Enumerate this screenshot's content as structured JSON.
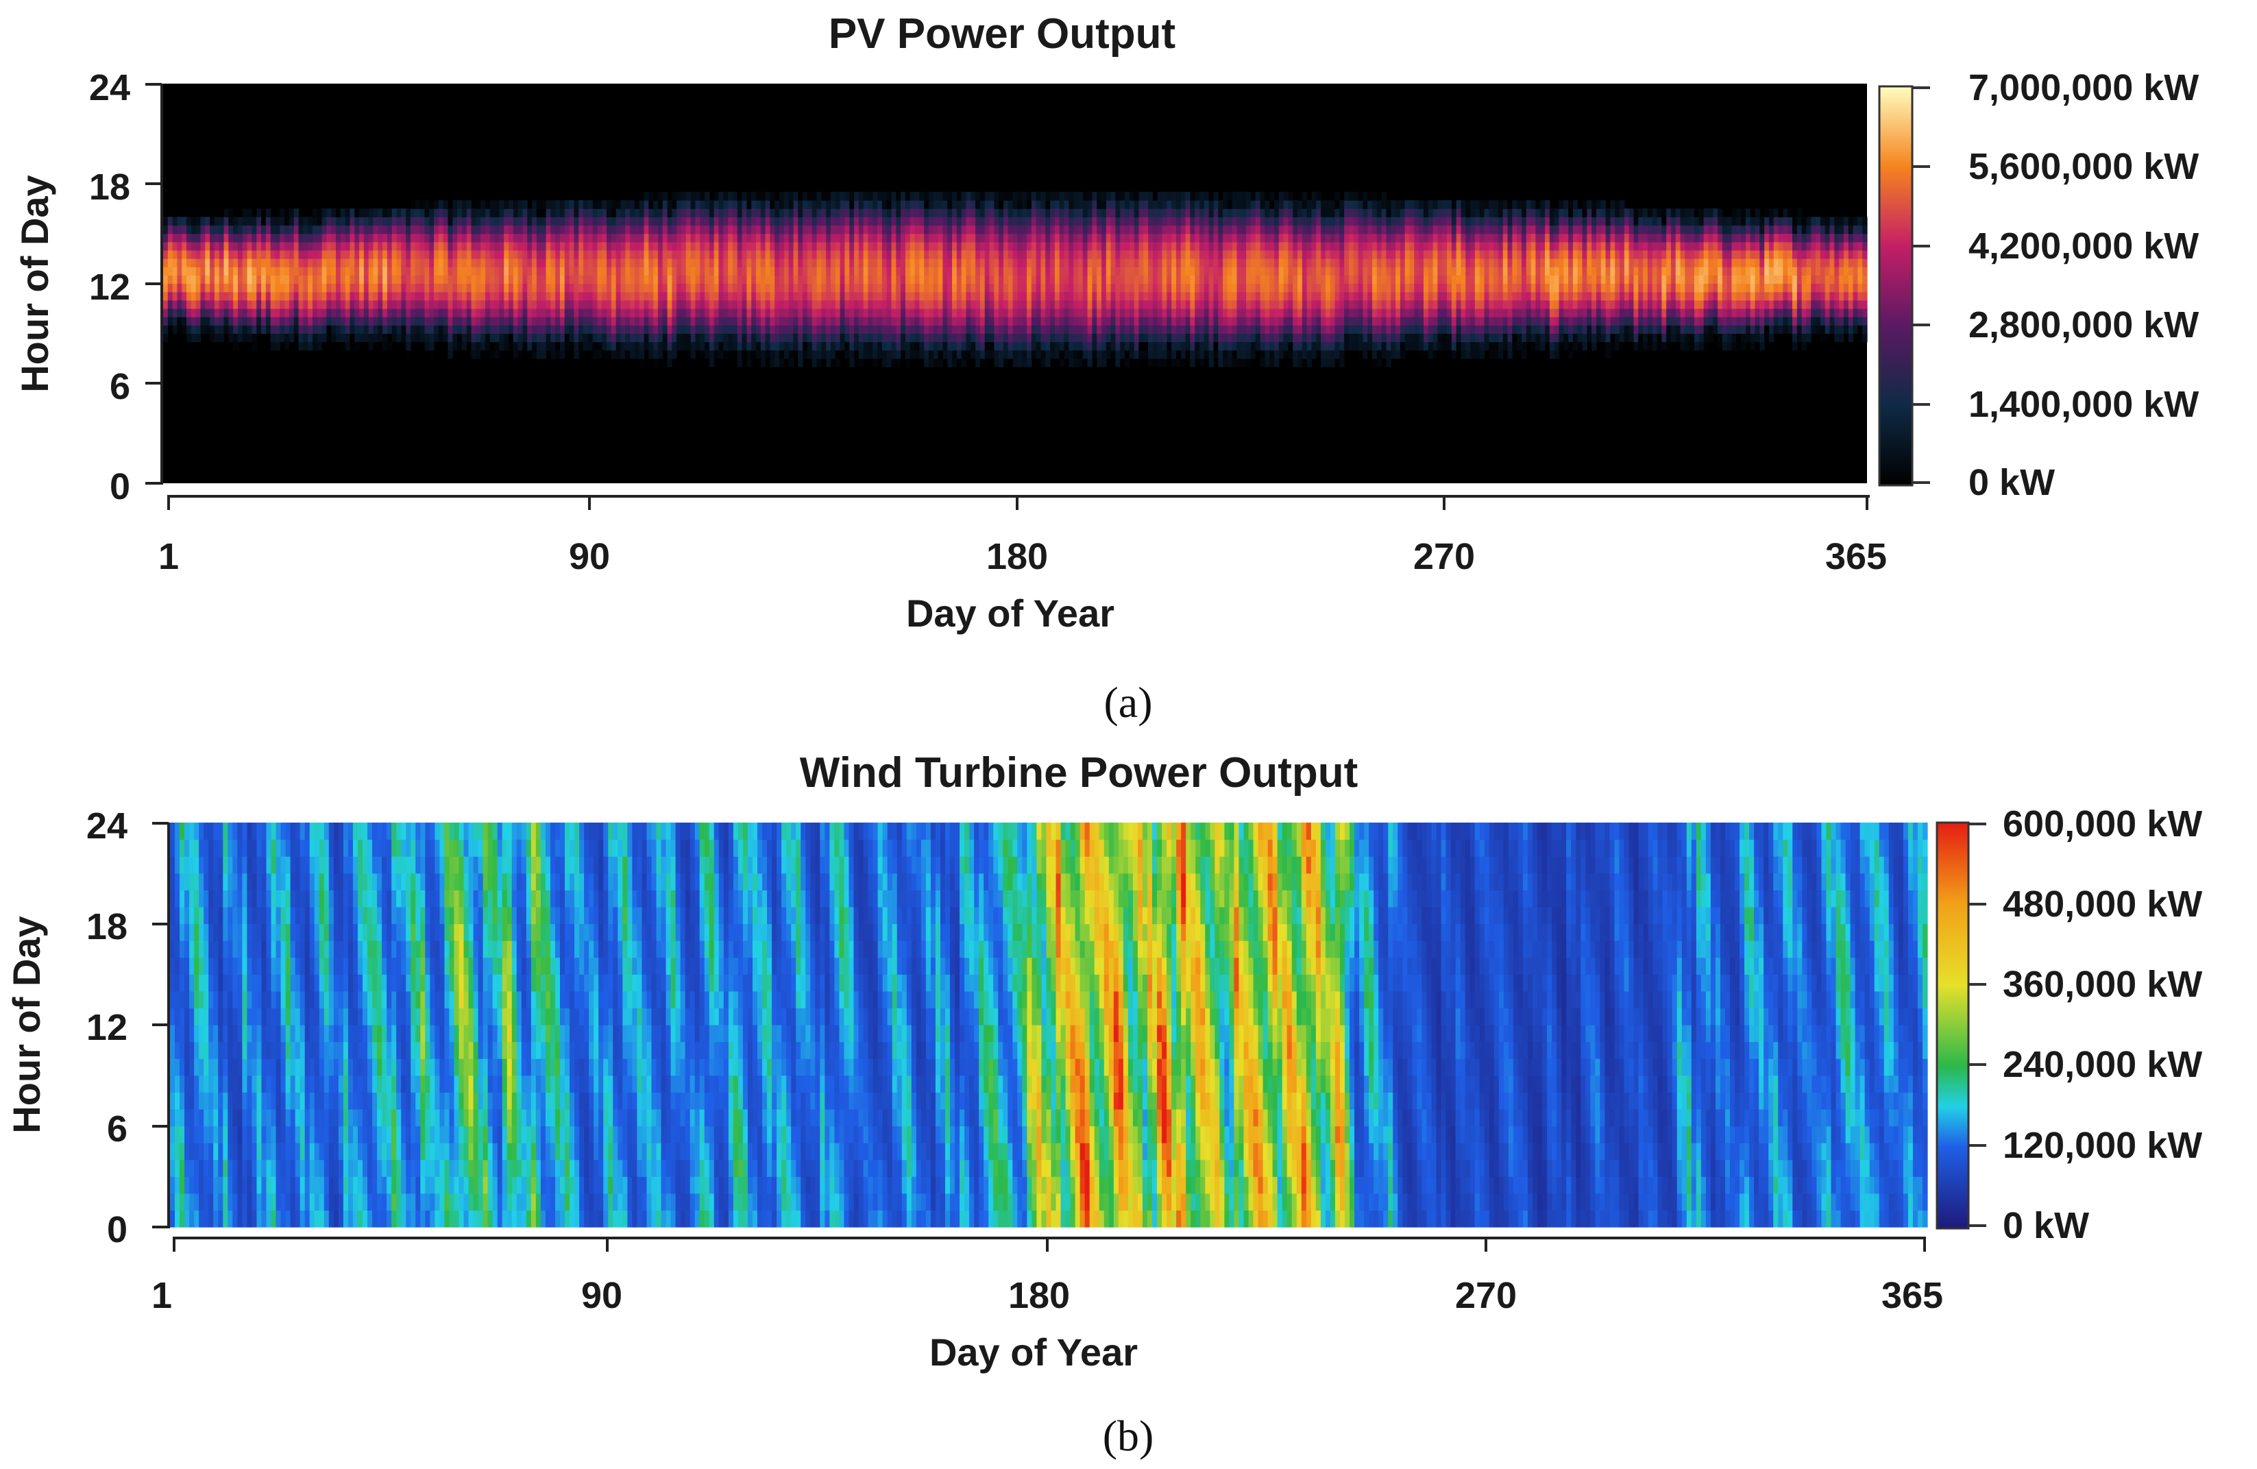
{
  "chart_data": [
    {
      "type": "heatmap",
      "panel_label": "a",
      "title": "PV Power Output",
      "xlabel": "Day of Year",
      "ylabel": "Hour of Day",
      "x_ticks": [
        1,
        90,
        180,
        270,
        365
      ],
      "y_ticks": [
        0,
        6,
        12,
        18,
        24
      ],
      "xlim": [
        1,
        365
      ],
      "ylim": [
        0,
        24
      ],
      "colorbar": {
        "min": 0,
        "max": 7000000,
        "unit": "kW",
        "tick_labels": [
          "0 kW",
          "1,400,000 kW",
          "2,800,000 kW",
          "4,200,000 kW",
          "5,600,000 kW",
          "7,000,000 kW"
        ],
        "stops": [
          {
            "value": 0,
            "color": "#000000"
          },
          {
            "value": 1400000,
            "color": "#0f2a46"
          },
          {
            "value": 2800000,
            "color": "#5a1a63"
          },
          {
            "value": 4200000,
            "color": "#c41f66"
          },
          {
            "value": 5600000,
            "color": "#f5841f"
          },
          {
            "value": 7000000,
            "color": "#fffdc0"
          }
        ]
      },
      "pattern": {
        "daylight_winter_hours": [
          9,
          15.5
        ],
        "daylight_summer_hours": [
          7.5,
          17
        ],
        "peak_hour": 12.5,
        "peak_output_winter_kw": 5600000,
        "peak_output_summer_kw": 5000000
      }
    },
    {
      "type": "heatmap",
      "panel_label": "b",
      "title": "Wind Turbine Power Output",
      "xlabel": "Day of Year",
      "ylabel": "Hour of Day",
      "x_ticks": [
        1,
        90,
        180,
        270,
        365
      ],
      "y_ticks": [
        0,
        6,
        12,
        18,
        24
      ],
      "xlim": [
        1,
        365
      ],
      "ylim": [
        0,
        24
      ],
      "colorbar": {
        "min": 0,
        "max": 600000,
        "unit": "kW",
        "tick_labels": [
          "0 kW",
          "120,000 kW",
          "240,000 kW",
          "360,000 kW",
          "480,000 kW",
          "600,000 kW"
        ],
        "stops": [
          {
            "value": 0,
            "color": "#1e1a7a"
          },
          {
            "value": 120000,
            "color": "#1f5fe6"
          },
          {
            "value": 180000,
            "color": "#22d0e6"
          },
          {
            "value": 240000,
            "color": "#2bb84a"
          },
          {
            "value": 360000,
            "color": "#e6e02a"
          },
          {
            "value": 480000,
            "color": "#f2a018"
          },
          {
            "value": 600000,
            "color": "#e61d12"
          }
        ]
      },
      "pattern": {
        "high_output_days": [
          178,
          245
        ],
        "low_output_days": [
          255,
          310
        ],
        "typical_output_kw": 160000,
        "summer_peak_kw": 430000
      }
    }
  ],
  "captions": {
    "a": {
      "open": "(",
      "letter": "a",
      "close": ")"
    },
    "b": {
      "open": "(",
      "letter": "b",
      "close": ")"
    }
  }
}
